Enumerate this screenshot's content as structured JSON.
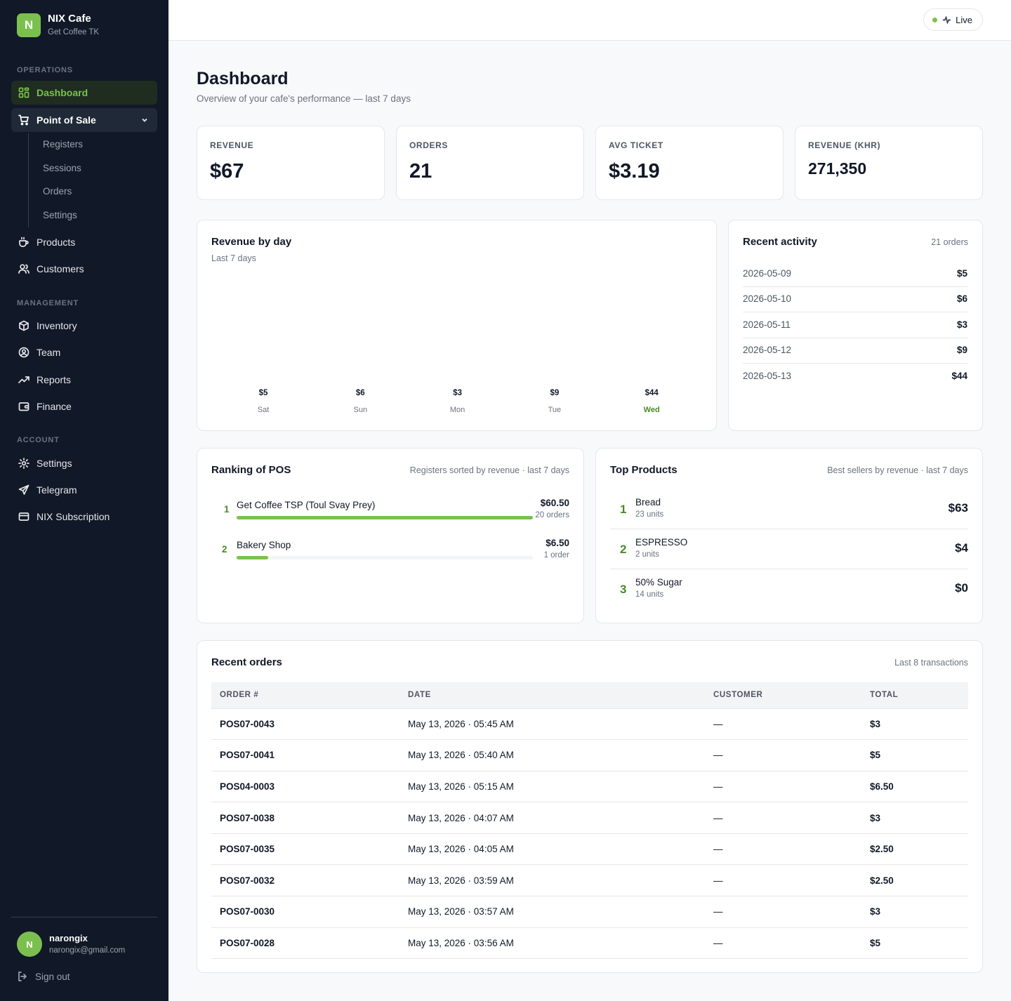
{
  "brand": {
    "initial": "N",
    "name": "NIX Cafe",
    "sub": "Get Coffee TK"
  },
  "sidebar": {
    "sections": [
      "OPERATIONS",
      "MANAGEMENT",
      "ACCOUNT"
    ],
    "dashboard": "Dashboard",
    "pos": "Point of Sale",
    "pos_sub": [
      "Registers",
      "Sessions",
      "Orders",
      "Settings"
    ],
    "products": "Products",
    "customers": "Customers",
    "inventory": "Inventory",
    "team": "Team",
    "reports": "Reports",
    "finance": "Finance",
    "settings": "Settings",
    "telegram": "Telegram",
    "subscription": "NIX Subscription"
  },
  "user": {
    "initial": "N",
    "name": "narongix",
    "email": "narongix@gmail.com",
    "signout": "Sign out"
  },
  "header": {
    "live": "Live"
  },
  "page": {
    "title": "Dashboard",
    "subtitle": "Overview of your cafe's performance — last 7 days"
  },
  "kpis": [
    {
      "label": "REVENUE",
      "value": "$67"
    },
    {
      "label": "ORDERS",
      "value": "21"
    },
    {
      "label": "AVG TICKET",
      "value": "$3.19"
    },
    {
      "label": "REVENUE (KHR)",
      "value": "271,350"
    }
  ],
  "revenue_chart": {
    "title": "Revenue by day",
    "subtitle": "Last 7 days",
    "chart_data": {
      "type": "bar",
      "title": "Revenue by day",
      "categories": [
        "Sat",
        "Sun",
        "Mon",
        "Tue",
        "Wed"
      ],
      "values": [
        5,
        6,
        3,
        9,
        44
      ],
      "labels": [
        "$5",
        "$6",
        "$3",
        "$9",
        "$44"
      ],
      "highlight": "Wed",
      "accent": "#7bc04f"
    }
  },
  "activity": {
    "title": "Recent activity",
    "meta": "21 orders",
    "rows": [
      {
        "date": "2026-05-09",
        "amount": "$5"
      },
      {
        "date": "2026-05-10",
        "amount": "$6"
      },
      {
        "date": "2026-05-11",
        "amount": "$3"
      },
      {
        "date": "2026-05-12",
        "amount": "$9"
      },
      {
        "date": "2026-05-13",
        "amount": "$44"
      }
    ]
  },
  "ranking": {
    "title": "Ranking of POS",
    "meta": "Registers sorted by revenue · last 7 days",
    "rows": [
      {
        "rank": "1",
        "name": "Get Coffee TSP (Toul Svay Prey)",
        "amount": "$60.50",
        "orders": "20 orders",
        "share": 1.0
      },
      {
        "rank": "2",
        "name": "Bakery Shop",
        "amount": "$6.50",
        "orders": "1 order",
        "share": 0.107
      }
    ]
  },
  "top_products": {
    "title": "Top Products",
    "meta": "Best sellers by revenue · last 7 days",
    "rows": [
      {
        "rank": "1",
        "name": "Bread",
        "units": "23 units",
        "amount": "$63"
      },
      {
        "rank": "2",
        "name": "ESPRESSO",
        "units": "2 units",
        "amount": "$4"
      },
      {
        "rank": "3",
        "name": "50% Sugar",
        "units": "14 units",
        "amount": "$0"
      }
    ]
  },
  "orders": {
    "title": "Recent orders",
    "meta": "Last 8 transactions",
    "columns": [
      "ORDER #",
      "DATE",
      "CUSTOMER",
      "TOTAL"
    ],
    "rows": [
      {
        "id": "POS07-0043",
        "date": "May 13, 2026 · 05:45 AM",
        "customer": "—",
        "total": "$3"
      },
      {
        "id": "POS07-0041",
        "date": "May 13, 2026 · 05:40 AM",
        "customer": "—",
        "total": "$5"
      },
      {
        "id": "POS04-0003",
        "date": "May 13, 2026 · 05:15 AM",
        "customer": "—",
        "total": "$6.50"
      },
      {
        "id": "POS07-0038",
        "date": "May 13, 2026 · 04:07 AM",
        "customer": "—",
        "total": "$3"
      },
      {
        "id": "POS07-0035",
        "date": "May 13, 2026 · 04:05 AM",
        "customer": "—",
        "total": "$2.50"
      },
      {
        "id": "POS07-0032",
        "date": "May 13, 2026 · 03:59 AM",
        "customer": "—",
        "total": "$2.50"
      },
      {
        "id": "POS07-0030",
        "date": "May 13, 2026 · 03:57 AM",
        "customer": "—",
        "total": "$3"
      },
      {
        "id": "POS07-0028",
        "date": "May 13, 2026 · 03:56 AM",
        "customer": "—",
        "total": "$5"
      }
    ]
  }
}
